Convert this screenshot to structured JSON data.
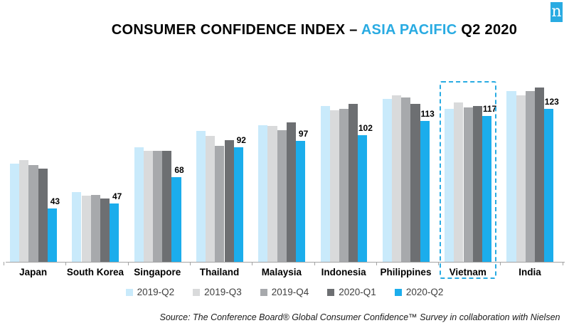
{
  "logo": {
    "letter": "n",
    "color": "#29abe2"
  },
  "title": {
    "prefix": "CONSUMER CONFIDENCE INDEX – ",
    "highlight": "ASIA PACIFIC",
    "suffix": " Q2 2020",
    "highlight_color": "#29abe2"
  },
  "chart_data": {
    "type": "bar",
    "title": "Consumer Confidence Index - Asia Pacific Q2 2020",
    "categories": [
      "Japan",
      "South Korea",
      "Singapore",
      "Thailand",
      "Malaysia",
      "Indonesia",
      "Philippines",
      "Vietnam",
      "India"
    ],
    "series": [
      {
        "name": "2019-Q2",
        "color": "#c9eafb",
        "values": [
          79,
          56,
          92,
          105,
          110,
          125,
          131,
          123,
          137
        ]
      },
      {
        "name": "2019-Q3",
        "color": "#d9dadb",
        "values": [
          82,
          53,
          89,
          101,
          109,
          122,
          134,
          128,
          134
        ]
      },
      {
        "name": "2019-Q4",
        "color": "#a7a9ac",
        "values": [
          78,
          54,
          89,
          93,
          106,
          123,
          132,
          124,
          137
        ]
      },
      {
        "name": "2020-Q1",
        "color": "#6d6f72",
        "values": [
          75,
          51,
          89,
          98,
          112,
          127,
          127,
          125,
          140
        ]
      },
      {
        "name": "2020-Q2",
        "color": "#1badec",
        "values": [
          43,
          47,
          68,
          92,
          97,
          102,
          113,
          117,
          123
        ]
      }
    ],
    "value_labels": {
      "series": "2020-Q2",
      "values": [
        43,
        47,
        68,
        92,
        97,
        102,
        113,
        117,
        123
      ]
    },
    "highlighted_category": "Vietnam",
    "highlight_border_color": "#29abe2",
    "xlabel": "",
    "ylabel": "",
    "ylim": [
      0,
      150
    ],
    "grid": false,
    "legend_position": "bottom"
  },
  "footer": {
    "source": "Source: The Conference Board® Global Consumer Confidence™ Survey in collaboration with Nielsen"
  }
}
